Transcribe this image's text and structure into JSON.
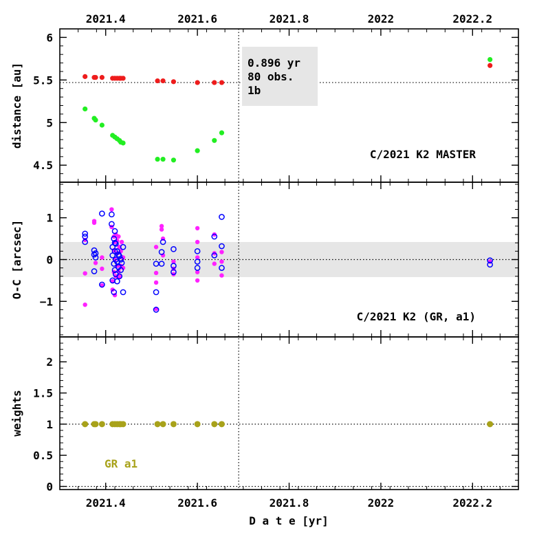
{
  "chart_data": {
    "type": "scatter",
    "x_axis": {
      "label": "D a t e [yr]",
      "range": [
        2021.3,
        2022.3
      ],
      "ticks": [
        2021.4,
        2021.6,
        2021.8,
        2022,
        2022.2
      ],
      "tick_labels": [
        "2021.4",
        "2021.6",
        "2021.8",
        "2022",
        "2022.2"
      ]
    },
    "divider_x": 2021.69,
    "colors": {
      "red": "#ee1c1c",
      "green": "#22ee22",
      "magenta": "#ff22ff",
      "blue": "#0000ff",
      "olive": "#a8a21a",
      "band": "#e6e6e6"
    },
    "panels": [
      {
        "id": "distance",
        "ylabel": "distance [au]",
        "ylim": [
          4.3,
          6.1
        ],
        "yticks": [
          4.5,
          5,
          5.5,
          6
        ],
        "ytick_labels": [
          "4.5",
          "5",
          "5.5",
          "6"
        ],
        "ref_line": 5.47,
        "label": "C/2021 K2 MASTER",
        "info_box": [
          "0.896 yr",
          "80 obs.",
          "1b"
        ],
        "series": [
          {
            "name": "red",
            "x": [
              2021.355,
              2021.375,
              2021.378,
              2021.392,
              2021.415,
              2021.42,
              2021.425,
              2021.43,
              2021.433,
              2021.438,
              2021.513,
              2021.525,
              2021.548,
              2021.6,
              2021.637,
              2021.653,
              2022.238
            ],
            "y": [
              5.54,
              5.53,
              5.53,
              5.53,
              5.52,
              5.52,
              5.52,
              5.52,
              5.52,
              5.52,
              5.49,
              5.49,
              5.48,
              5.47,
              5.47,
              5.47,
              5.67
            ]
          },
          {
            "name": "green",
            "x": [
              2021.355,
              2021.375,
              2021.378,
              2021.392,
              2021.415,
              2021.42,
              2021.425,
              2021.43,
              2021.433,
              2021.438,
              2021.513,
              2021.525,
              2021.548,
              2021.6,
              2021.637,
              2021.653,
              2022.238
            ],
            "y": [
              5.16,
              5.05,
              5.03,
              4.97,
              4.85,
              4.83,
              4.81,
              4.79,
              4.77,
              4.76,
              4.57,
              4.57,
              4.56,
              4.67,
              4.79,
              4.88,
              5.74
            ]
          }
        ]
      },
      {
        "id": "oc",
        "ylabel": "O-C [arcsec]",
        "ylim": [
          -1.85,
          1.85
        ],
        "yticks": [
          -1,
          0,
          1
        ],
        "ytick_labels": [
          "−1",
          "0",
          "1"
        ],
        "ref_line": 0,
        "band": [
          -0.42,
          0.42
        ],
        "label": "C/2021 K2 (GR, a1)",
        "series": [
          {
            "name": "magenta",
            "filled": true,
            "x": [
              2021.355,
              2021.355,
              2021.355,
              2021.375,
              2021.375,
              2021.378,
              2021.392,
              2021.392,
              2021.392,
              2021.413,
              2021.413,
              2021.415,
              2021.415,
              2021.418,
              2021.418,
              2021.418,
              2021.42,
              2021.42,
              2021.42,
              2021.422,
              2021.422,
              2021.425,
              2021.425,
              2021.425,
              2021.428,
              2021.428,
              2021.43,
              2021.43,
              2021.433,
              2021.433,
              2021.435,
              2021.438,
              2021.438,
              2021.51,
              2021.51,
              2021.51,
              2021.51,
              2021.522,
              2021.522,
              2021.525,
              2021.525,
              2021.548,
              2021.548,
              2021.548,
              2021.6,
              2021.6,
              2021.6,
              2021.6,
              2021.6,
              2021.637,
              2021.637,
              2021.637,
              2021.653,
              2021.653,
              2021.653,
              2022.238
            ],
            "y": [
              -1.08,
              -0.33,
              0.47,
              0.88,
              0.92,
              -0.08,
              0.05,
              -0.22,
              -0.62,
              1.2,
              0.78,
              -0.52,
              -0.72,
              0.55,
              0.22,
              -0.3,
              -0.85,
              0.42,
              0.0,
              0.6,
              -0.4,
              0.15,
              -0.15,
              0.45,
              0.55,
              -0.28,
              0.3,
              -0.4,
              -0.15,
              0.2,
              0.42,
              0.05,
              -0.2,
              0.3,
              -0.32,
              -0.55,
              -1.18,
              0.8,
              0.72,
              0.5,
              0.1,
              -0.05,
              -0.22,
              -0.35,
              0.75,
              0.42,
              -0.3,
              -0.5,
              0.05,
              0.6,
              0.15,
              -0.1,
              0.18,
              -0.05,
              -0.38,
              -0.05
            ]
          },
          {
            "name": "blue",
            "filled": false,
            "x": [
              2021.355,
              2021.355,
              2021.355,
              2021.375,
              2021.375,
              2021.375,
              2021.378,
              2021.378,
              2021.392,
              2021.392,
              2021.413,
              2021.413,
              2021.415,
              2021.415,
              2021.415,
              2021.418,
              2021.418,
              2021.418,
              2021.42,
              2021.42,
              2021.42,
              2021.42,
              2021.422,
              2021.422,
              2021.422,
              2021.425,
              2021.425,
              2021.425,
              2021.428,
              2021.428,
              2021.43,
              2021.43,
              2021.433,
              2021.433,
              2021.435,
              2021.438,
              2021.438,
              2021.51,
              2021.51,
              2021.51,
              2021.522,
              2021.522,
              2021.525,
              2021.548,
              2021.548,
              2021.548,
              2021.6,
              2021.6,
              2021.6,
              2021.637,
              2021.637,
              2021.653,
              2021.653,
              2021.653,
              2022.238,
              2022.238
            ],
            "y": [
              0.62,
              0.55,
              0.42,
              0.22,
              0.12,
              -0.28,
              0.15,
              0.05,
              1.1,
              -0.6,
              1.08,
              0.85,
              0.3,
              0.1,
              -0.5,
              0.5,
              -0.1,
              -0.78,
              0.68,
              0.2,
              -0.25,
              0.4,
              0.38,
              0.0,
              -0.35,
              0.2,
              -0.05,
              -0.52,
              0.12,
              -0.18,
              0.08,
              -0.4,
              0.0,
              -0.25,
              -0.08,
              -0.78,
              0.3,
              -0.78,
              -1.2,
              -0.1,
              0.18,
              -0.1,
              0.42,
              0.25,
              -0.15,
              -0.3,
              0.2,
              -0.05,
              -0.2,
              0.55,
              0.1,
              1.02,
              0.32,
              -0.2,
              -0.02,
              -0.12
            ]
          }
        ]
      },
      {
        "id": "weights",
        "ylabel": "weights",
        "ylim": [
          -0.05,
          2.4
        ],
        "yticks": [
          0,
          0.5,
          1,
          1.5,
          2
        ],
        "ytick_labels": [
          "0",
          "0.5",
          "1",
          "1.5",
          "2"
        ],
        "ref_line": 1,
        "ref_line_bottom": 0,
        "label": "GR a1",
        "series": [
          {
            "name": "olive",
            "x": [
              2021.355,
              2021.375,
              2021.378,
              2021.392,
              2021.415,
              2021.42,
              2021.425,
              2021.43,
              2021.433,
              2021.438,
              2021.513,
              2021.525,
              2021.548,
              2021.6,
              2021.637,
              2021.653,
              2022.238
            ],
            "y": [
              1,
              1,
              1,
              1,
              1,
              1,
              1,
              1,
              1,
              1,
              1,
              1,
              1,
              1,
              1,
              1,
              1
            ]
          }
        ]
      }
    ]
  }
}
